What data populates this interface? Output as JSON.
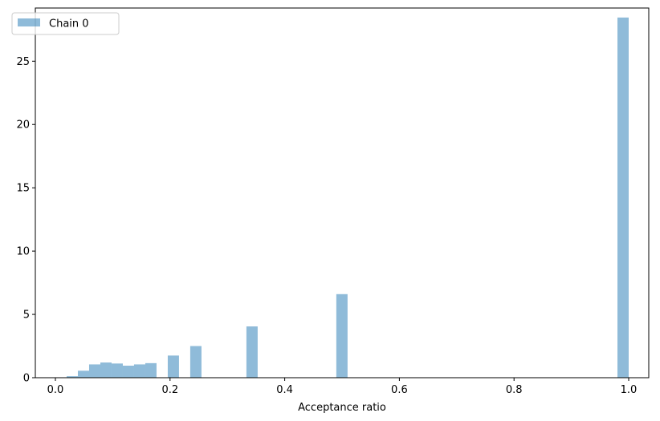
{
  "chart_data": {
    "type": "bar",
    "title": "",
    "xlabel": "Acceptance ratio",
    "ylabel": "",
    "xlim": [
      -0.035,
      1.035
    ],
    "ylim": [
      0,
      29.2
    ],
    "grid": false,
    "legend_position": "top-left",
    "bin_width": 0.0196,
    "xticks": [
      0.0,
      0.2,
      0.4,
      0.6,
      0.8,
      1.0
    ],
    "xtick_labels": [
      "0.0",
      "0.2",
      "0.4",
      "0.6",
      "0.8",
      "1.0"
    ],
    "yticks": [
      0,
      5,
      10,
      15,
      20,
      25
    ],
    "ytick_labels": [
      "0",
      "5",
      "10",
      "15",
      "20",
      "25"
    ],
    "series": [
      {
        "name": "Chain 0",
        "color": "#1f77b4",
        "opacity": 0.5,
        "bins": [
          {
            "x0": 0.0196,
            "x1": 0.0392,
            "value": 0.12
          },
          {
            "x0": 0.0392,
            "x1": 0.0588,
            "value": 0.55
          },
          {
            "x0": 0.0588,
            "x1": 0.0784,
            "value": 1.05
          },
          {
            "x0": 0.0784,
            "x1": 0.098,
            "value": 1.2
          },
          {
            "x0": 0.098,
            "x1": 0.1176,
            "value": 1.12
          },
          {
            "x0": 0.1176,
            "x1": 0.1372,
            "value": 0.95
          },
          {
            "x0": 0.1372,
            "x1": 0.1568,
            "value": 1.05
          },
          {
            "x0": 0.1568,
            "x1": 0.1764,
            "value": 1.15
          },
          {
            "x0": 0.196,
            "x1": 0.2156,
            "value": 1.75
          },
          {
            "x0": 0.2352,
            "x1": 0.2548,
            "value": 2.5
          },
          {
            "x0": 0.3332,
            "x1": 0.3528,
            "value": 4.05
          },
          {
            "x0": 0.49,
            "x1": 0.5096,
            "value": 6.6
          },
          {
            "x0": 0.9804,
            "x1": 1.0,
            "value": 28.45
          }
        ]
      }
    ]
  }
}
